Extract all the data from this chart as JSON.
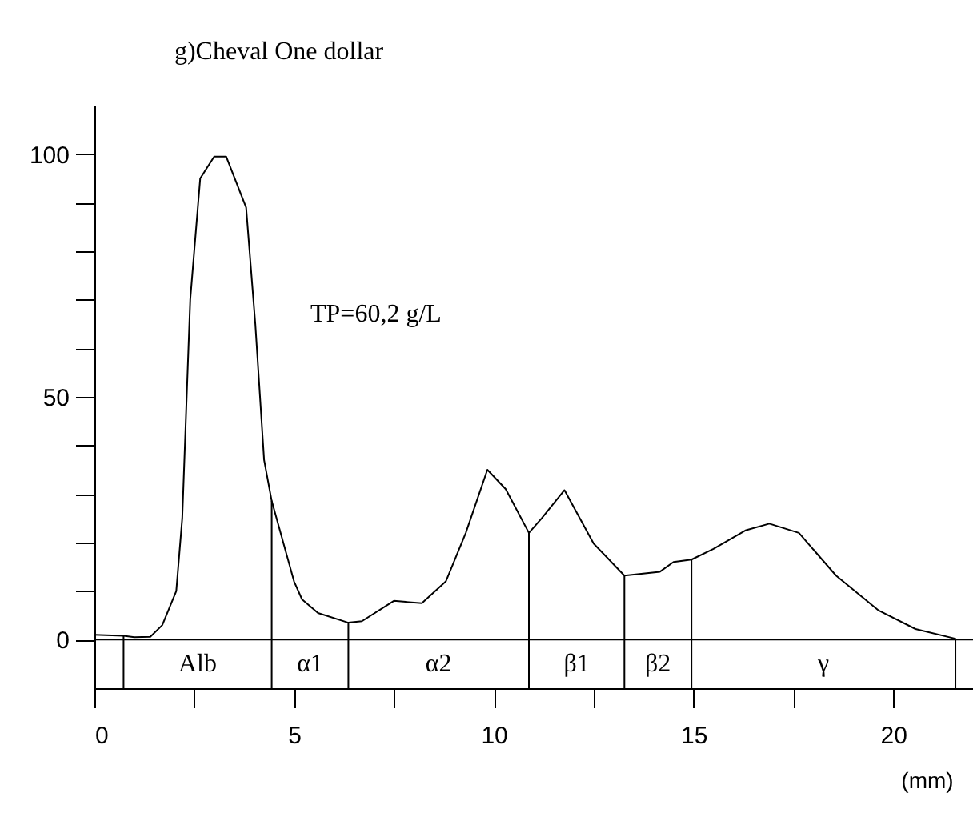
{
  "chart_data": {
    "type": "line",
    "title": "g)Cheval One dollar",
    "xlabel": "(mm)",
    "x": [
      0,
      0.73,
      1.0,
      1.4,
      1.7,
      2.05,
      2.2,
      2.4,
      2.65,
      3.0,
      3.3,
      3.8,
      4.03,
      4.25,
      4.44,
      5.0,
      5.2,
      5.6,
      6.36,
      6.7,
      7.5,
      8.2,
      8.8,
      9.3,
      9.84,
      10.3,
      10.88,
      11.2,
      11.77,
      12.5,
      13.27,
      14.16,
      14.5,
      14.95,
      15.5,
      16.3,
      16.9,
      17.64,
      18.57,
      19.64,
      20.56,
      21.56
    ],
    "series": [
      {
        "color": "#000000",
        "values": [
          1,
          0.8,
          0.5,
          0.6,
          3,
          10,
          25,
          70,
          95,
          99.5,
          99.5,
          89,
          65,
          37,
          28.6,
          12,
          8.3,
          5.5,
          3.5,
          3.8,
          8,
          7.5,
          12,
          22,
          35,
          31,
          22,
          25,
          30.8,
          19.8,
          13.2,
          14,
          16,
          16.5,
          18.7,
          22.5,
          23.9,
          22,
          13.2,
          6,
          2.2,
          0.2
        ]
      }
    ],
    "xlim": [
      0,
      22
    ],
    "ylim": [
      -10,
      110
    ],
    "xticks": [
      0,
      {
        "value": 2.5,
        "label": null
      },
      5,
      {
        "value": 7.5,
        "label": null
      },
      10,
      {
        "value": 12.5,
        "label": null
      },
      15,
      {
        "value": 17.5,
        "label": null
      },
      20
    ],
    "yticks": [
      0,
      {
        "value": 10,
        "label": null
      },
      {
        "value": 20,
        "label": null
      },
      {
        "value": 30,
        "label": null
      },
      {
        "value": 40,
        "label": null
      },
      50,
      {
        "value": 60,
        "label": null
      },
      {
        "value": 70,
        "label": null
      },
      {
        "value": 80,
        "label": null
      },
      {
        "value": 90,
        "label": null
      },
      100
    ],
    "ref_lines": [
      {
        "axis": "y",
        "value": 0
      },
      {
        "axis": "x",
        "value": 0.73
      },
      {
        "axis": "x",
        "value": 4.44
      },
      {
        "axis": "x",
        "value": 6.36
      },
      {
        "axis": "x",
        "value": 10.88
      },
      {
        "axis": "x",
        "value": 13.27
      },
      {
        "axis": "x",
        "value": 14.95
      },
      {
        "axis": "x",
        "value": 21.56
      }
    ],
    "annotations": [
      "TP=60,2 g/L",
      "Alb",
      "α1",
      "α2",
      "β1",
      "β2",
      "γ"
    ],
    "grid": false,
    "legend": false,
    "marker": "none",
    "line_style": "solid"
  }
}
